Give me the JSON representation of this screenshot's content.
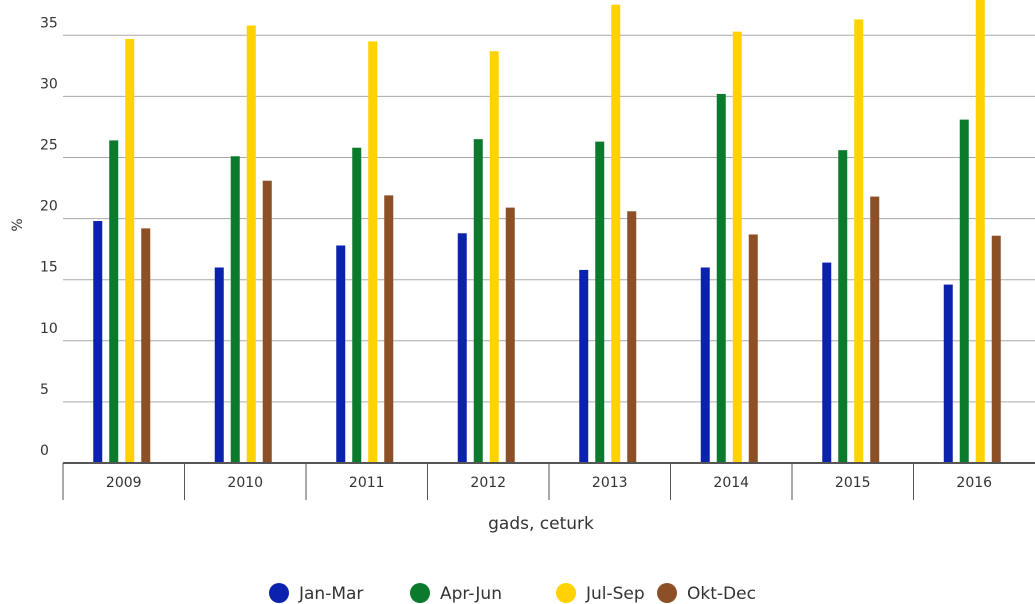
{
  "chart_data": {
    "type": "bar",
    "y_label": "%",
    "x_label": "gads, ceturk",
    "categories": [
      "2009",
      "2010",
      "2011",
      "2012",
      "2013",
      "2014",
      "2015",
      "2016"
    ],
    "series": [
      {
        "name": "Jan-Mar",
        "color": "#0b22ad",
        "values": [
          19.8,
          16.0,
          17.8,
          18.8,
          15.8,
          16.0,
          16.4,
          14.6
        ]
      },
      {
        "name": "Apr-Jun",
        "color": "#0b7a2c",
        "values": [
          26.4,
          25.1,
          25.8,
          26.5,
          26.3,
          30.2,
          25.6,
          28.1
        ]
      },
      {
        "name": "Jul-Sep",
        "color": "#ffd200",
        "values": [
          34.7,
          35.8,
          34.5,
          33.7,
          37.5,
          35.3,
          36.3,
          38.5
        ]
      },
      {
        "name": "Okt-Dec",
        "color": "#8c4f26",
        "values": [
          19.2,
          23.1,
          21.9,
          20.9,
          20.6,
          18.7,
          21.8,
          18.6
        ]
      }
    ],
    "ylim": [
      0,
      38
    ],
    "yticks": [
      0,
      5,
      10,
      15,
      20,
      25,
      30,
      35
    ],
    "grid": true
  }
}
